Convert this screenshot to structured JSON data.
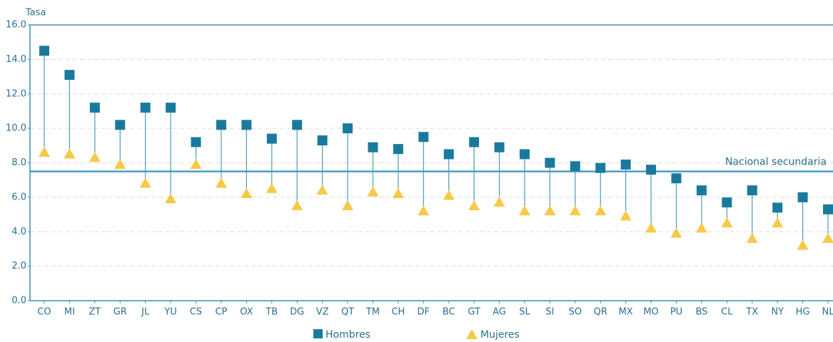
{
  "chart_data": {
    "type": "dumbbell",
    "y_label": "Tasa",
    "categories": [
      "CO",
      "MI",
      "ZT",
      "GR",
      "JL",
      "YU",
      "CS",
      "CP",
      "OX",
      "TB",
      "DG",
      "VZ",
      "QT",
      "TM",
      "CH",
      "DF",
      "BC",
      "GT",
      "AG",
      "SL",
      "SI",
      "SO",
      "QR",
      "MX",
      "MO",
      "PU",
      "BS",
      "CL",
      "TX",
      "NY",
      "HG",
      "NL"
    ],
    "series": [
      {
        "name": "Hombres",
        "color": "#1a7a9e",
        "marker": "square",
        "values": [
          14.5,
          13.1,
          11.2,
          10.2,
          11.2,
          11.2,
          9.2,
          10.2,
          10.2,
          9.4,
          10.2,
          9.3,
          10.0,
          8.9,
          8.8,
          9.5,
          8.5,
          9.2,
          8.9,
          8.5,
          8.0,
          7.8,
          7.7,
          7.9,
          7.6,
          7.1,
          6.4,
          5.7,
          6.4,
          5.4,
          6.0,
          5.3
        ]
      },
      {
        "name": "Mujeres",
        "color": "#f7c948",
        "marker": "triangle",
        "values": [
          8.6,
          8.5,
          8.3,
          7.9,
          6.8,
          5.9,
          7.9,
          6.8,
          6.2,
          6.5,
          5.5,
          6.4,
          5.5,
          6.3,
          6.2,
          5.2,
          6.1,
          5.5,
          5.7,
          5.2,
          5.2,
          5.2,
          5.2,
          4.9,
          4.2,
          3.9,
          4.2,
          4.5,
          3.6,
          4.5,
          3.2,
          3.6
        ]
      }
    ],
    "reference_line": {
      "value": 7.5,
      "label": "Nacional secundaria"
    },
    "ylim": [
      0,
      16
    ],
    "yticks": [
      {
        "value": 0,
        "label": "0.0"
      },
      {
        "value": 2,
        "label": "2.0"
      },
      {
        "value": 4,
        "label": "4.0"
      },
      {
        "value": 6,
        "label": "6.0"
      },
      {
        "value": 8,
        "label": "8.0"
      },
      {
        "value": 10,
        "label": "10.0"
      },
      {
        "value": 12,
        "label": "12.0"
      },
      {
        "value": 14,
        "label": "14.0"
      },
      {
        "value": 16,
        "label": "16.0"
      }
    ],
    "grid": true
  }
}
